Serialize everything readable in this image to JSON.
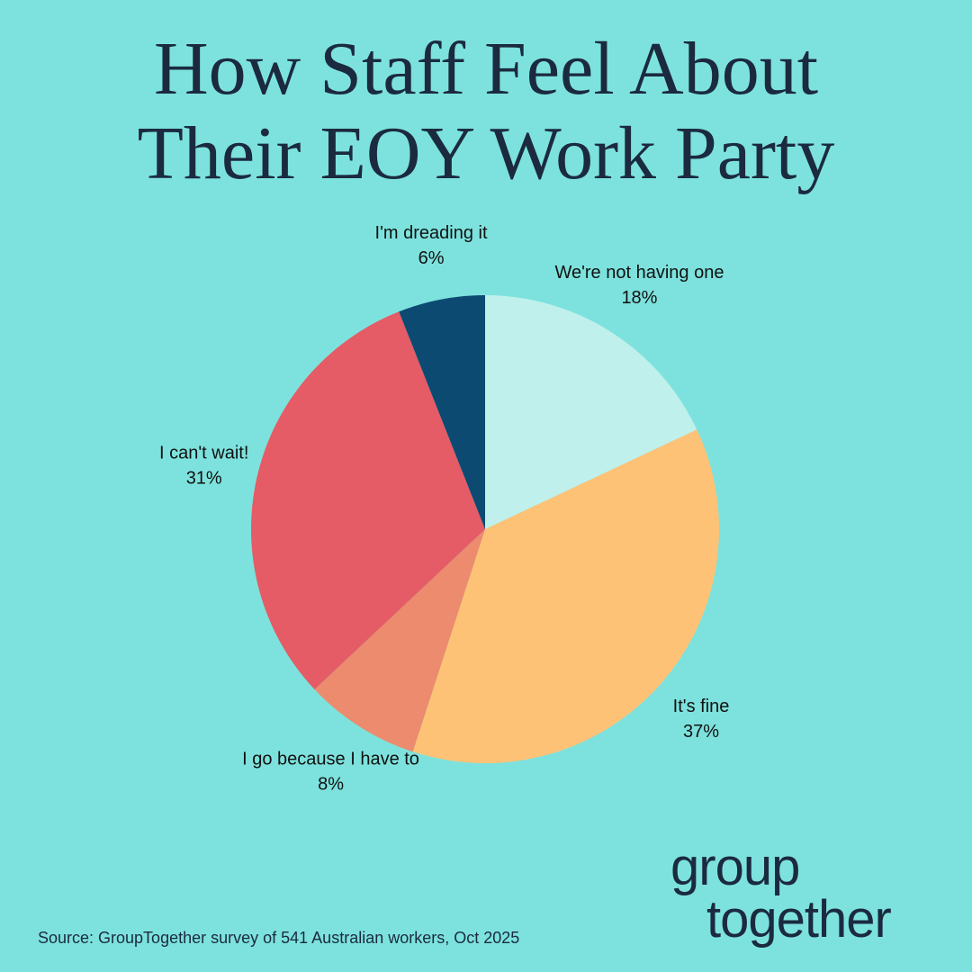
{
  "chart_data": {
    "type": "pie",
    "title": "How Staff Feel About Their EOY Work Party",
    "categories": [
      "We're not having one",
      "It's fine",
      "I go because I have to",
      "I can't wait!",
      "I'm dreading it"
    ],
    "values": [
      18,
      37,
      8,
      31,
      6
    ],
    "value_labels": [
      "18%",
      "37%",
      "8%",
      "31%",
      "6%"
    ],
    "colors": [
      "#c0f0ec",
      "#fec277",
      "#ec8b6e",
      "#e55b66",
      "#0c4a72"
    ],
    "source": "Source: GroupTogether survey of 541 Australian workers, Oct 2025"
  },
  "logo": [
    "group",
    "together"
  ]
}
